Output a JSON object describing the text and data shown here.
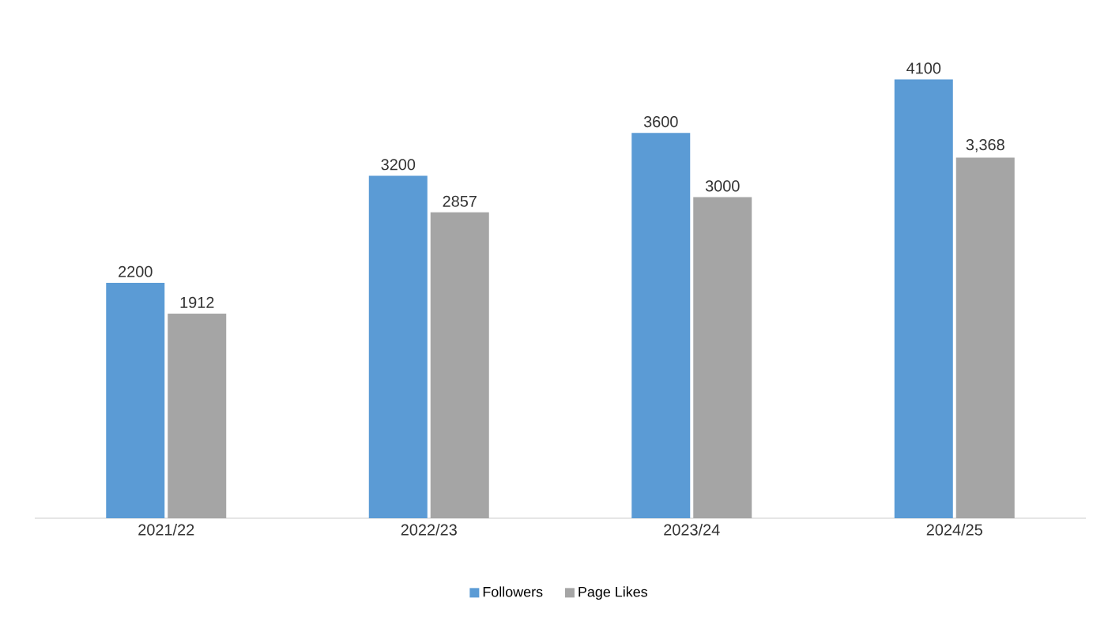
{
  "chart_data": {
    "type": "bar",
    "categories": [
      "2021/22",
      "2022/23",
      "2023/24",
      "2024/25"
    ],
    "series": [
      {
        "name": "Followers",
        "color": "#5b9bd5",
        "values": [
          2200,
          3200,
          3600,
          4100
        ],
        "value_labels": [
          "2200",
          "3200",
          "3600",
          "4100"
        ]
      },
      {
        "name": "Page Likes",
        "color": "#a5a5a5",
        "values": [
          1912,
          2857,
          3000,
          3368
        ],
        "value_labels": [
          "1912",
          "2857",
          "3000",
          "3,368"
        ]
      }
    ],
    "legend": "bottom"
  }
}
